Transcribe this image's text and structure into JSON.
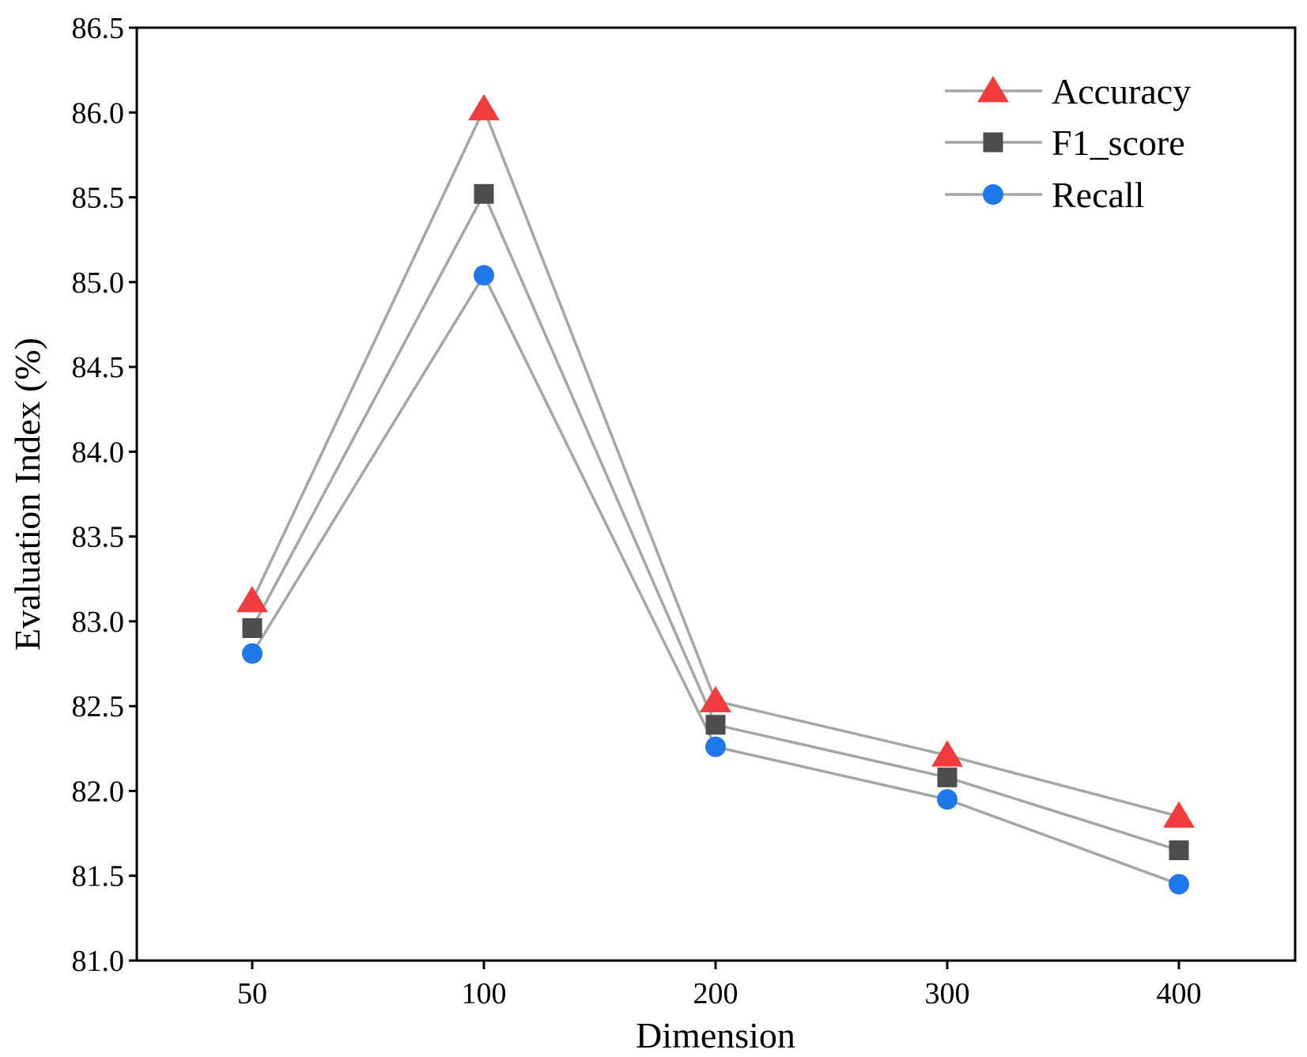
{
  "chart_data": {
    "type": "line",
    "title": "",
    "xlabel": "Dimension",
    "ylabel": "Evaluation Index (%)",
    "categories": [
      "50",
      "100",
      "200",
      "300",
      "400"
    ],
    "ylim": [
      81.0,
      86.5
    ],
    "yticks": [
      "81.0",
      "81.5",
      "82.0",
      "82.5",
      "83.0",
      "83.5",
      "84.0",
      "84.5",
      "85.0",
      "85.5",
      "86.0",
      "86.5"
    ],
    "grid": false,
    "legend_position": "top-right",
    "line_color": "#a6a6a6",
    "series": [
      {
        "name": "Accuracy",
        "marker": "triangle",
        "color": "#f03c3c",
        "values": [
          83.12,
          86.02,
          82.53,
          82.21,
          81.85
        ]
      },
      {
        "name": "F1_score",
        "marker": "square",
        "color": "#4d4d4d",
        "values": [
          82.96,
          85.52,
          82.39,
          82.08,
          81.65
        ]
      },
      {
        "name": "Recall",
        "marker": "circle",
        "color": "#1f78e8",
        "values": [
          82.81,
          85.04,
          82.26,
          81.95,
          81.45
        ]
      }
    ]
  }
}
